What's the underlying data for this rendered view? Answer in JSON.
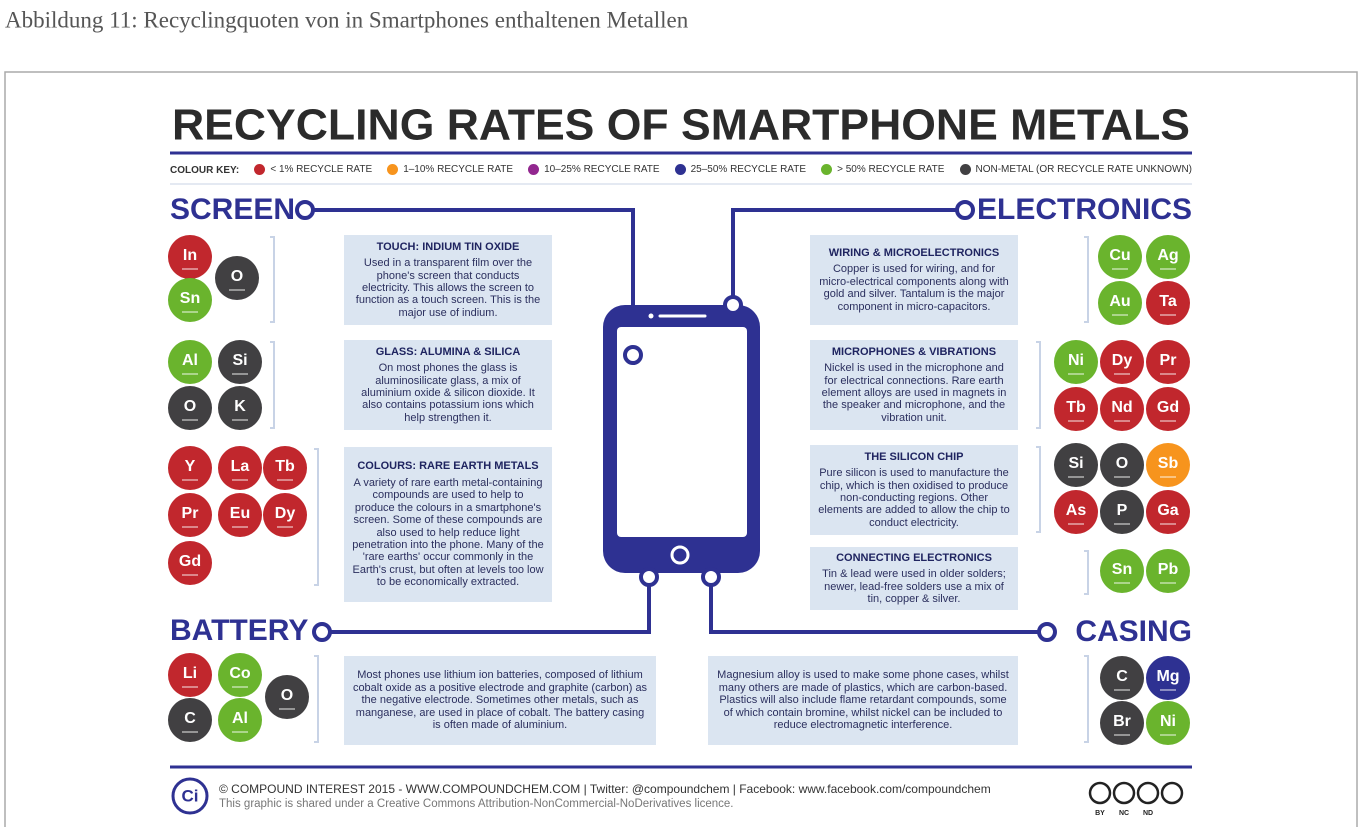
{
  "caption": "Abbildung 11: Recyclingquoten von in Smartphones enthaltenen Metallen",
  "title": "RECYCLING RATES OF SMARTPHONE METALS",
  "colour_key": {
    "label": "COLOUR KEY:",
    "items": [
      {
        "label": "< 1% RECYCLE RATE",
        "color": "#c1272d"
      },
      {
        "label": "1–10% RECYCLE RATE",
        "color": "#f7941d"
      },
      {
        "label": "10–25% RECYCLE RATE",
        "color": "#92278f"
      },
      {
        "label": "25–50% RECYCLE RATE",
        "color": "#2e3192"
      },
      {
        "label": "> 50% RECYCLE RATE",
        "color": "#6ab42d"
      },
      {
        "label": "NON-METAL (OR RECYCLE RATE UNKNOWN)",
        "color": "#414042"
      }
    ]
  },
  "sections": {
    "screen": {
      "title": "SCREEN",
      "panels": [
        {
          "heading": "TOUCH: INDIUM TIN OXIDE",
          "text": "Used in a transparent film over the phone's screen that conducts electricity. This allows the screen to function as a touch screen. This is the major use of indium.",
          "elements": [
            {
              "symbol": "In",
              "color": "#c1272d"
            },
            {
              "symbol": "O",
              "color": "#414042"
            },
            {
              "symbol": "Sn",
              "color": "#6ab42d"
            }
          ]
        },
        {
          "heading": "GLASS: ALUMINA & SILICA",
          "text": "On most phones the glass is aluminosilicate glass, a mix of aluminium oxide & silicon dioxide. It also contains potassium ions which help strengthen it.",
          "elements": [
            {
              "symbol": "Al",
              "color": "#6ab42d"
            },
            {
              "symbol": "Si",
              "color": "#414042"
            },
            {
              "symbol": "O",
              "color": "#414042"
            },
            {
              "symbol": "K",
              "color": "#414042"
            }
          ]
        },
        {
          "heading": "COLOURS: RARE EARTH METALS",
          "text": "A variety of rare earth metal-containing compounds are used to help to produce the colours in a smartphone's screen. Some of these compounds are also used to help reduce light penetration into the phone. Many of the 'rare earths' occur commonly in the Earth's crust, but often at levels too low to be economically extracted.",
          "elements": [
            {
              "symbol": "Y",
              "color": "#c1272d"
            },
            {
              "symbol": "La",
              "color": "#c1272d"
            },
            {
              "symbol": "Tb",
              "color": "#c1272d"
            },
            {
              "symbol": "Pr",
              "color": "#c1272d"
            },
            {
              "symbol": "Eu",
              "color": "#c1272d"
            },
            {
              "symbol": "Dy",
              "color": "#c1272d"
            },
            {
              "symbol": "Gd",
              "color": "#c1272d"
            }
          ]
        }
      ]
    },
    "electronics": {
      "title": "ELECTRONICS",
      "panels": [
        {
          "heading": "WIRING & MICROELECTRONICS",
          "text": "Copper is used for wiring, and for micro-electrical components along with gold and silver. Tantalum is the major component in micro-capacitors.",
          "elements": [
            {
              "symbol": "Cu",
              "color": "#6ab42d"
            },
            {
              "symbol": "Ag",
              "color": "#6ab42d"
            },
            {
              "symbol": "Au",
              "color": "#6ab42d"
            },
            {
              "symbol": "Ta",
              "color": "#c1272d"
            }
          ]
        },
        {
          "heading": "MICROPHONES & VIBRATIONS",
          "text": "Nickel is used in the microphone and for electrical connections. Rare earth element alloys are used in magnets in the speaker and microphone, and the vibration unit.",
          "elements": [
            {
              "symbol": "Ni",
              "color": "#6ab42d"
            },
            {
              "symbol": "Dy",
              "color": "#c1272d"
            },
            {
              "symbol": "Pr",
              "color": "#c1272d"
            },
            {
              "symbol": "Tb",
              "color": "#c1272d"
            },
            {
              "symbol": "Nd",
              "color": "#c1272d"
            },
            {
              "symbol": "Gd",
              "color": "#c1272d"
            }
          ]
        },
        {
          "heading": "THE SILICON CHIP",
          "text": "Pure silicon is used to manufacture the chip, which is then oxidised to produce non-conducting regions. Other elements are added to allow the chip to conduct electricity.",
          "elements": [
            {
              "symbol": "Si",
              "color": "#414042"
            },
            {
              "symbol": "O",
              "color": "#414042"
            },
            {
              "symbol": "Sb",
              "color": "#f7941d"
            },
            {
              "symbol": "As",
              "color": "#c1272d"
            },
            {
              "symbol": "P",
              "color": "#414042"
            },
            {
              "symbol": "Ga",
              "color": "#c1272d"
            }
          ]
        },
        {
          "heading": "CONNECTING ELECTRONICS",
          "text": "Tin & lead were used in older solders; newer, lead-free solders use a mix of tin, copper & silver.",
          "elements": [
            {
              "symbol": "Sn",
              "color": "#6ab42d"
            },
            {
              "symbol": "Pb",
              "color": "#6ab42d"
            }
          ]
        }
      ]
    },
    "battery": {
      "title": "BATTERY",
      "panels": [
        {
          "text": "Most phones use lithium ion batteries, composed of lithium cobalt oxide as a positive electrode and graphite (carbon) as the negative electrode. Sometimes other metals, such as manganese, are used in place of cobalt. The battery casing is often made of aluminium.",
          "elements": [
            {
              "symbol": "Li",
              "color": "#c1272d"
            },
            {
              "symbol": "Co",
              "color": "#6ab42d"
            },
            {
              "symbol": "O",
              "color": "#414042"
            },
            {
              "symbol": "C",
              "color": "#414042"
            },
            {
              "symbol": "Al",
              "color": "#6ab42d"
            }
          ]
        }
      ]
    },
    "casing": {
      "title": "CASING",
      "panels": [
        {
          "text": "Magnesium alloy is used to make some phone cases, whilst many others are made of plastics, which are carbon-based. Plastics will also include flame retardant compounds, some of which contain bromine, whilst nickel can be included to reduce electromagnetic interference.",
          "elements": [
            {
              "symbol": "C",
              "color": "#414042"
            },
            {
              "symbol": "Mg",
              "color": "#2e3192"
            },
            {
              "symbol": "Br",
              "color": "#414042"
            },
            {
              "symbol": "Ni",
              "color": "#6ab42d"
            }
          ]
        }
      ]
    }
  },
  "footer": {
    "logo": "Ci",
    "credit": "© COMPOUND INTEREST 2015 - WWW.COMPOUNDCHEM.COM | Twitter: @compoundchem | Facebook: www.facebook.com/compoundchem",
    "licence": "This graphic is shared under a Creative Commons Attribution-NonCommercial-NoDerivatives licence.",
    "badges": [
      "BY",
      "NC",
      "ND"
    ]
  }
}
